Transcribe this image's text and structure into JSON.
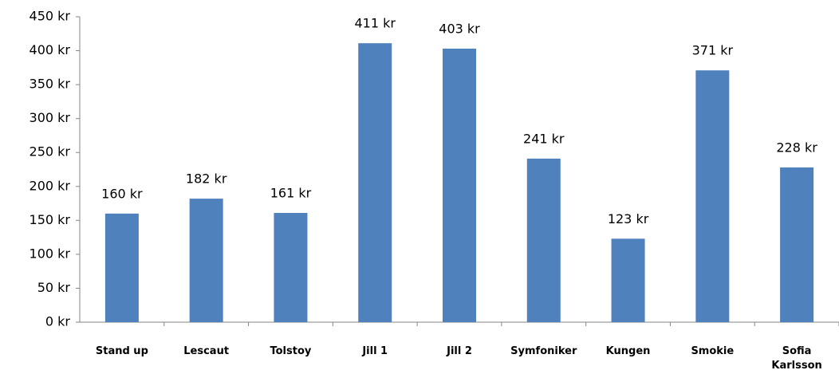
{
  "chart_data": {
    "type": "bar",
    "categories": [
      "Stand up",
      "Lescaut",
      "Tolstoy",
      "Jill 1",
      "Jill 2",
      "Symfoniker",
      "Kungen",
      "Smokie",
      "Sofia Karlsson"
    ],
    "values": [
      160,
      182,
      161,
      411,
      403,
      241,
      123,
      371,
      228
    ],
    "value_labels": [
      "160 kr",
      "182 kr",
      "161 kr",
      "411 kr",
      "403 kr",
      "241 kr",
      "123 kr",
      "371 kr",
      "228 kr"
    ],
    "color": "#4f81bd",
    "ylim": [
      0,
      450
    ],
    "yticks": [
      {
        "value": 0,
        "label": "0 kr"
      },
      {
        "value": 50,
        "label": "50 kr"
      },
      {
        "value": 100,
        "label": "100 kr"
      },
      {
        "value": 150,
        "label": "150 kr"
      },
      {
        "value": 200,
        "label": "200 kr"
      },
      {
        "value": 250,
        "label": "250 kr"
      },
      {
        "value": 300,
        "label": "300 kr"
      },
      {
        "value": 350,
        "label": "350 kr"
      },
      {
        "value": 400,
        "label": "400 kr"
      },
      {
        "value": 450,
        "label": "450 kr"
      }
    ],
    "grid": false
  }
}
